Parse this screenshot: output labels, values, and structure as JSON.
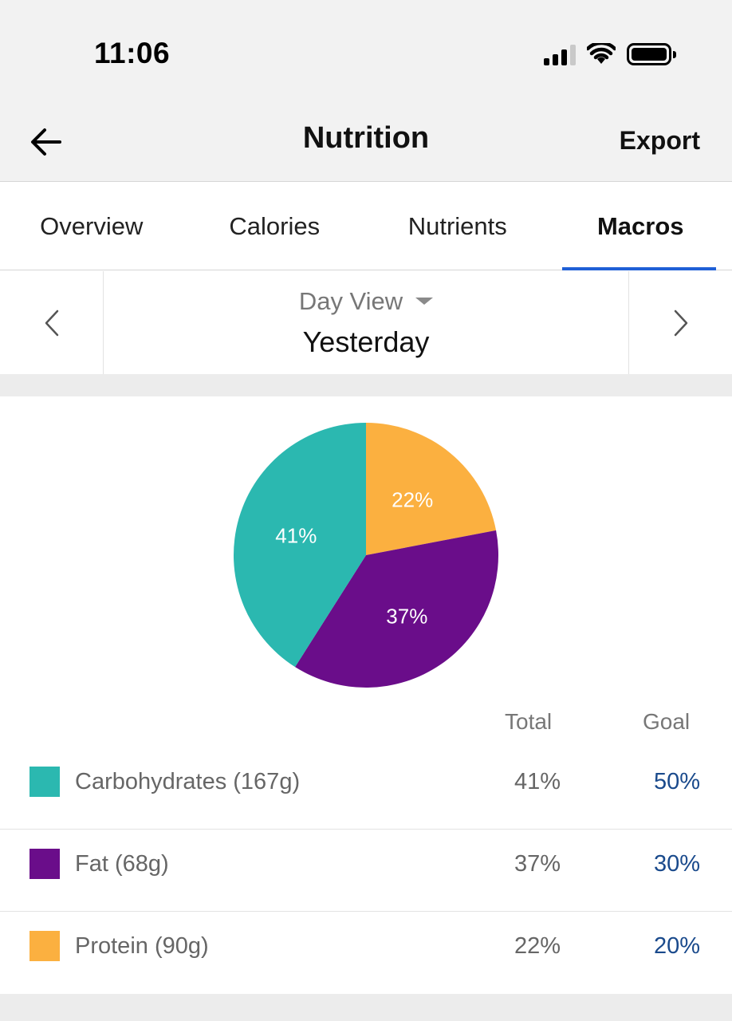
{
  "status_bar": {
    "time": "11:06"
  },
  "header": {
    "title": "Nutrition",
    "export_label": "Export"
  },
  "tabs": [
    {
      "label": "Overview",
      "active": false
    },
    {
      "label": "Calories",
      "active": false
    },
    {
      "label": "Nutrients",
      "active": false
    },
    {
      "label": "Macros",
      "active": true
    }
  ],
  "day_selector": {
    "view": "Day View",
    "day": "Yesterday"
  },
  "colors": {
    "carbohydrates": "#2bb8b0",
    "fat": "#6a0d8a",
    "protein": "#fbb040",
    "goal_text": "#1a4a8c",
    "tab_underline": "#1f5fd6"
  },
  "chart_data": {
    "type": "pie",
    "slices": [
      {
        "label": "22%",
        "value": 22,
        "color": "#fbb040"
      },
      {
        "label": "37%",
        "value": 37,
        "color": "#6a0d8a"
      },
      {
        "label": "41%",
        "value": 41,
        "color": "#2bb8b0"
      }
    ]
  },
  "table": {
    "total_header": "Total",
    "goal_header": "Goal",
    "rows": [
      {
        "label": "Carbohydrates (167g)",
        "total": "41%",
        "goal": "50%",
        "color": "#2bb8b0"
      },
      {
        "label": "Fat (68g)",
        "total": "37%",
        "goal": "30%",
        "color": "#6a0d8a"
      },
      {
        "label": "Protein (90g)",
        "total": "22%",
        "goal": "20%",
        "color": "#fbb040"
      }
    ]
  }
}
